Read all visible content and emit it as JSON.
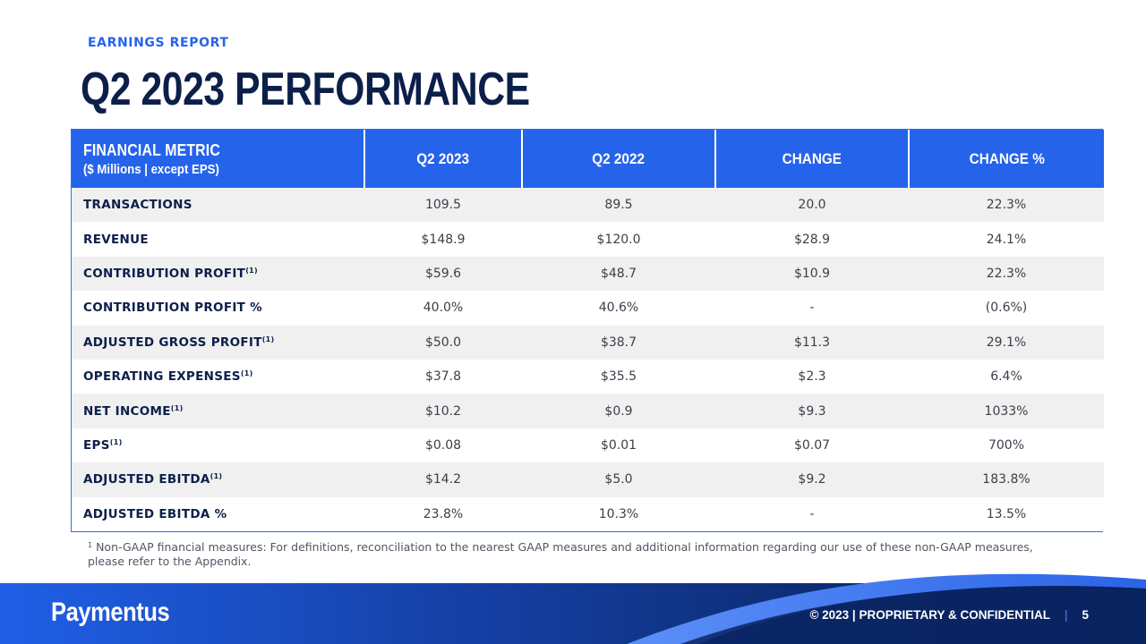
{
  "header": {
    "eyebrow": "EARNINGS REPORT",
    "title": "Q2 2023 PERFORMANCE"
  },
  "table": {
    "columns": {
      "metric_line1": "FINANCIAL METRIC",
      "metric_line2": "($ Millions | except EPS)",
      "q2_2023": "Q2 2023",
      "q2_2022": "Q2 2022",
      "change": "CHANGE",
      "change_pct": "CHANGE %"
    },
    "rows": [
      {
        "metric": "TRANSACTIONS",
        "footnote": "",
        "q2_2023": "109.5",
        "q2_2022": "89.5",
        "change": "20.0",
        "change_pct": "22.3%"
      },
      {
        "metric": "REVENUE",
        "footnote": "",
        "q2_2023": "$148.9",
        "q2_2022": "$120.0",
        "change": "$28.9",
        "change_pct": "24.1%"
      },
      {
        "metric": "CONTRIBUTION PROFIT",
        "footnote": "(1)",
        "q2_2023": "$59.6",
        "q2_2022": "$48.7",
        "change": "$10.9",
        "change_pct": "22.3%"
      },
      {
        "metric": "CONTRIBUTION PROFIT %",
        "footnote": "",
        "q2_2023": "40.0%",
        "q2_2022": "40.6%",
        "change": "-",
        "change_pct": "(0.6%)"
      },
      {
        "metric": "ADJUSTED GROSS PROFIT",
        "footnote": "(1)",
        "q2_2023": "$50.0",
        "q2_2022": "$38.7",
        "change": "$11.3",
        "change_pct": "29.1%"
      },
      {
        "metric": "OPERATING EXPENSES",
        "footnote": "(1)",
        "q2_2023": "$37.8",
        "q2_2022": "$35.5",
        "change": "$2.3",
        "change_pct": "6.4%"
      },
      {
        "metric": "NET INCOME",
        "footnote": "(1)",
        "q2_2023": "$10.2",
        "q2_2022": "$0.9",
        "change": "$9.3",
        "change_pct": "1033%"
      },
      {
        "metric": "EPS",
        "footnote": "(1)",
        "q2_2023": "$0.08",
        "q2_2022": "$0.01",
        "change": "$0.07",
        "change_pct": "700%"
      },
      {
        "metric": "ADJUSTED EBITDA",
        "footnote": "(1)",
        "q2_2023": "$14.2",
        "q2_2022": "$5.0",
        "change": "$9.2",
        "change_pct": "183.8%"
      },
      {
        "metric": "ADJUSTED EBITDA %",
        "footnote": "",
        "q2_2023": "23.8%",
        "q2_2022": "10.3%",
        "change": "-",
        "change_pct": "13.5%"
      }
    ]
  },
  "footnote": {
    "marker": "1",
    "text": "Non-GAAP financial measures: For definitions, reconciliation to the nearest GAAP measures and additional information regarding our use of these non-GAAP measures, please refer to the Appendix."
  },
  "footer": {
    "logo": "Paymentus",
    "legal": "© 2023 | PROPRIETARY & CONFIDENTIAL",
    "separator": "|",
    "page_number": "5"
  },
  "colors": {
    "accent": "#2563eb",
    "navy": "#0c1f4a",
    "row_alt": "#f0f0f0"
  }
}
